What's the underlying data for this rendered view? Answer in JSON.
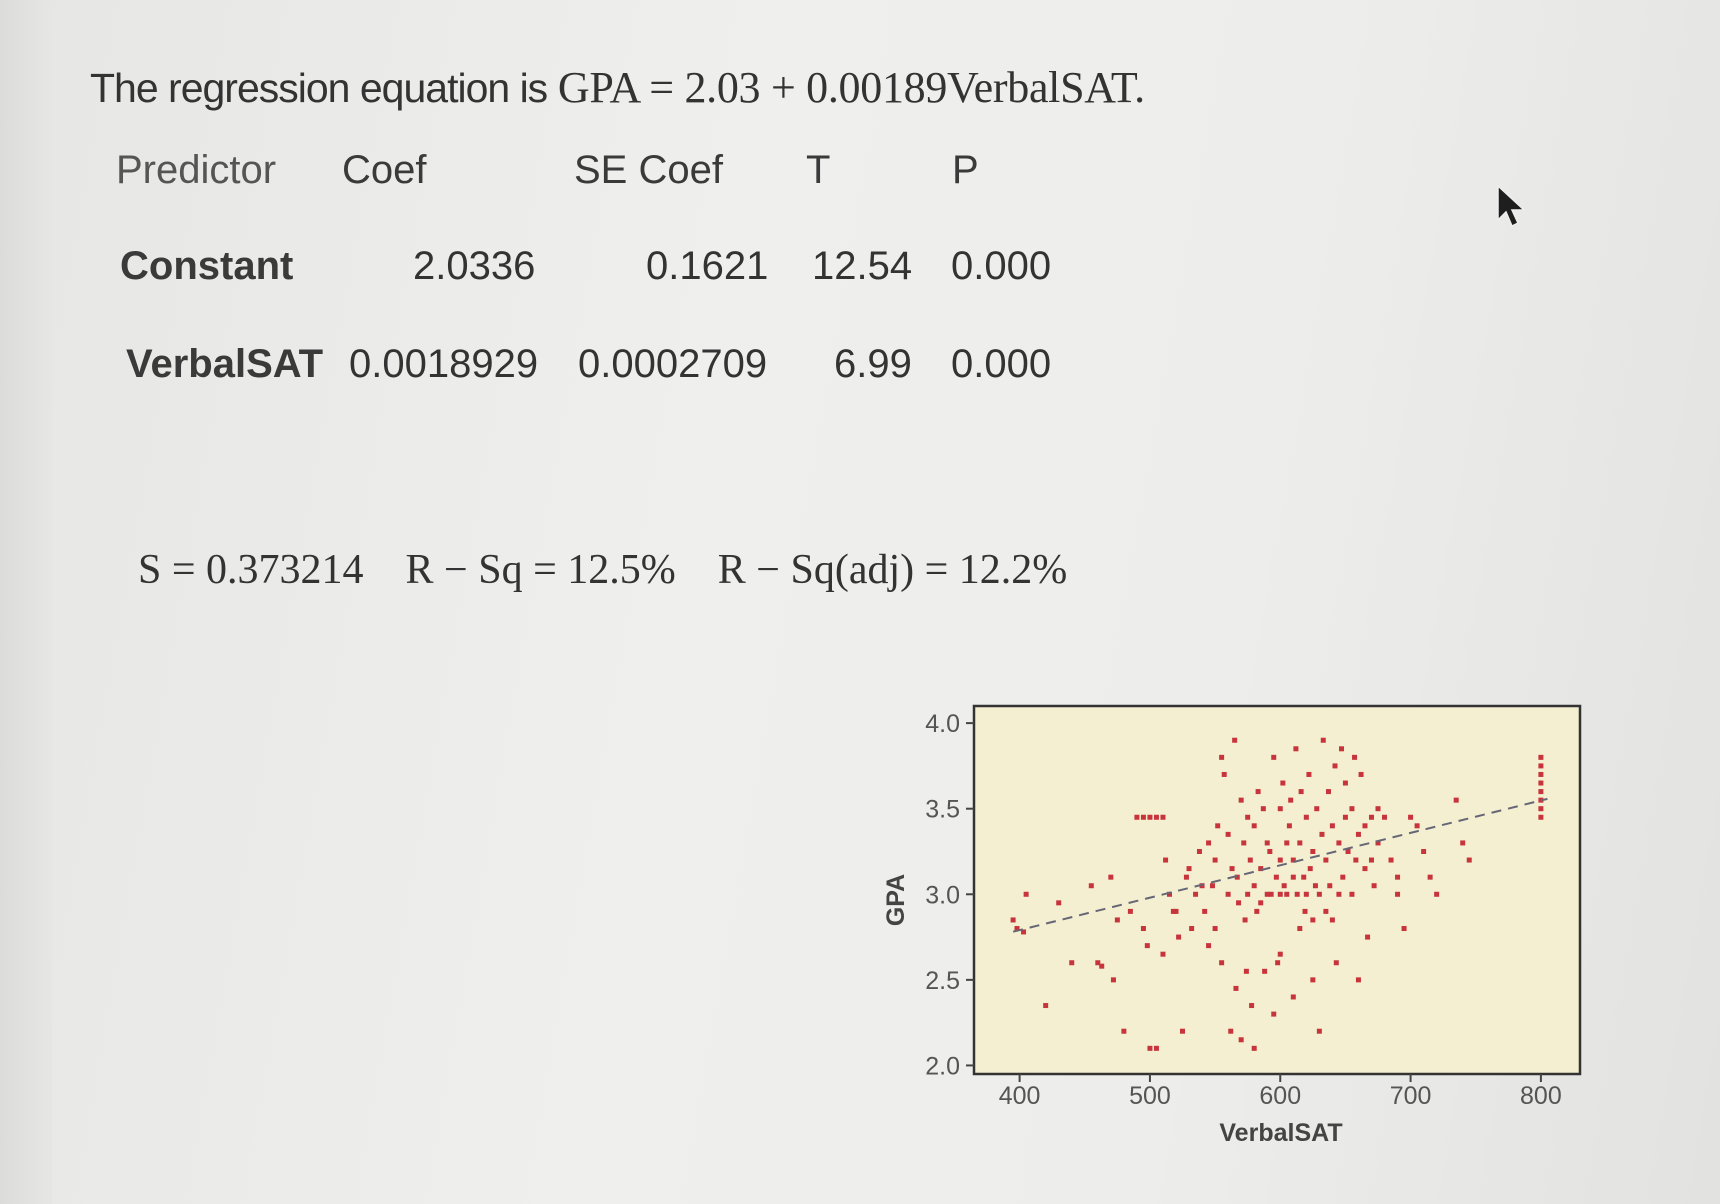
{
  "equation": {
    "lead": "The regression equation is",
    "formula": "GPA = 2.03 + 0.00189VerbalSAT."
  },
  "table": {
    "headers": [
      "Predictor",
      "Coef",
      "SE Coef",
      "T",
      "P"
    ],
    "rows": [
      {
        "predictor": "Constant",
        "coef": "2.0336",
        "se_coef": "0.1621",
        "t": "12.54",
        "p": "0.000"
      },
      {
        "predictor": "VerbalSAT",
        "coef": "0.0018929",
        "se_coef": "0.0002709",
        "t": "6.99",
        "p": "0.000"
      }
    ]
  },
  "stats": {
    "s": "S = 0.373214",
    "rsq": "R − Sq = 12.5%",
    "rsq_adj": "R − Sq(adj) = 12.2%"
  },
  "chart_data": {
    "type": "scatter",
    "xlabel": "VerbalSAT",
    "ylabel": "GPA",
    "xlim": [
      365,
      830
    ],
    "ylim": [
      1.95,
      4.1
    ],
    "x_ticks": [
      "400",
      "500",
      "600",
      "700",
      "800"
    ],
    "y_ticks": [
      "4.0",
      "3.5",
      "3.0",
      "2.5",
      "2.0"
    ],
    "regression_line": {
      "intercept": 2.0336,
      "slope": 0.0018929,
      "style": "dashed"
    },
    "background_color": "#f3efd0",
    "point_color": "#c8343c",
    "points": [
      [
        395,
        2.85
      ],
      [
        398,
        2.8
      ],
      [
        403,
        2.78
      ],
      [
        405,
        3.0
      ],
      [
        420,
        2.35
      ],
      [
        430,
        2.95
      ],
      [
        440,
        2.6
      ],
      [
        455,
        3.05
      ],
      [
        460,
        2.6
      ],
      [
        463,
        2.58
      ],
      [
        470,
        3.1
      ],
      [
        472,
        2.5
      ],
      [
        475,
        2.85
      ],
      [
        480,
        2.2
      ],
      [
        485,
        2.9
      ],
      [
        490,
        3.45
      ],
      [
        495,
        3.45
      ],
      [
        500,
        3.45
      ],
      [
        505,
        3.45
      ],
      [
        510,
        3.45
      ],
      [
        495,
        2.8
      ],
      [
        498,
        2.7
      ],
      [
        500,
        2.1
      ],
      [
        505,
        2.1
      ],
      [
        510,
        2.65
      ],
      [
        512,
        3.2
      ],
      [
        515,
        3.0
      ],
      [
        518,
        2.9
      ],
      [
        520,
        2.9
      ],
      [
        522,
        2.75
      ],
      [
        525,
        2.2
      ],
      [
        528,
        3.1
      ],
      [
        530,
        3.15
      ],
      [
        532,
        2.8
      ],
      [
        535,
        3.0
      ],
      [
        538,
        3.25
      ],
      [
        540,
        3.05
      ],
      [
        542,
        2.9
      ],
      [
        545,
        2.7
      ],
      [
        545,
        3.3
      ],
      [
        548,
        3.05
      ],
      [
        550,
        3.2
      ],
      [
        550,
        2.8
      ],
      [
        552,
        3.4
      ],
      [
        555,
        2.6
      ],
      [
        555,
        3.8
      ],
      [
        557,
        3.7
      ],
      [
        560,
        3.0
      ],
      [
        560,
        3.35
      ],
      [
        562,
        2.2
      ],
      [
        563,
        3.15
      ],
      [
        565,
        3.9
      ],
      [
        566,
        2.45
      ],
      [
        567,
        3.1
      ],
      [
        568,
        2.95
      ],
      [
        570,
        2.15
      ],
      [
        570,
        3.55
      ],
      [
        572,
        3.3
      ],
      [
        573,
        2.85
      ],
      [
        574,
        2.55
      ],
      [
        575,
        3.0
      ],
      [
        575,
        3.45
      ],
      [
        577,
        3.2
      ],
      [
        578,
        2.35
      ],
      [
        580,
        2.1
      ],
      [
        580,
        3.05
      ],
      [
        580,
        3.4
      ],
      [
        582,
        2.9
      ],
      [
        583,
        3.6
      ],
      [
        585,
        3.15
      ],
      [
        585,
        2.95
      ],
      [
        587,
        3.5
      ],
      [
        588,
        2.55
      ],
      [
        590,
        3.0
      ],
      [
        590,
        3.3
      ],
      [
        592,
        3.25
      ],
      [
        593,
        3.0
      ],
      [
        595,
        3.8
      ],
      [
        595,
        2.3
      ],
      [
        597,
        3.1
      ],
      [
        598,
        2.6
      ],
      [
        600,
        2.65
      ],
      [
        600,
        3.0
      ],
      [
        600,
        3.2
      ],
      [
        600,
        3.5
      ],
      [
        602,
        3.65
      ],
      [
        603,
        3.05
      ],
      [
        605,
        3.3
      ],
      [
        605,
        3.0
      ],
      [
        607,
        3.4
      ],
      [
        608,
        3.55
      ],
      [
        610,
        2.4
      ],
      [
        610,
        3.2
      ],
      [
        610,
        3.1
      ],
      [
        612,
        3.85
      ],
      [
        613,
        3.0
      ],
      [
        615,
        2.8
      ],
      [
        615,
        3.3
      ],
      [
        616,
        3.6
      ],
      [
        618,
        3.1
      ],
      [
        619,
        2.9
      ],
      [
        620,
        3.0
      ],
      [
        620,
        3.45
      ],
      [
        622,
        3.7
      ],
      [
        623,
        3.15
      ],
      [
        625,
        2.5
      ],
      [
        625,
        3.25
      ],
      [
        625,
        2.85
      ],
      [
        627,
        3.05
      ],
      [
        628,
        3.5
      ],
      [
        630,
        3.0
      ],
      [
        630,
        2.2
      ],
      [
        632,
        3.35
      ],
      [
        633,
        3.9
      ],
      [
        635,
        2.9
      ],
      [
        635,
        3.2
      ],
      [
        637,
        3.6
      ],
      [
        638,
        3.05
      ],
      [
        640,
        3.4
      ],
      [
        640,
        2.85
      ],
      [
        642,
        3.75
      ],
      [
        643,
        2.6
      ],
      [
        645,
        3.0
      ],
      [
        645,
        3.3
      ],
      [
        647,
        3.85
      ],
      [
        648,
        3.1
      ],
      [
        650,
        3.65
      ],
      [
        650,
        3.45
      ],
      [
        652,
        3.25
      ],
      [
        655,
        3.0
      ],
      [
        655,
        3.5
      ],
      [
        657,
        3.8
      ],
      [
        658,
        3.2
      ],
      [
        660,
        2.5
      ],
      [
        660,
        3.35
      ],
      [
        662,
        3.7
      ],
      [
        665,
        3.15
      ],
      [
        665,
        3.4
      ],
      [
        667,
        2.75
      ],
      [
        670,
        3.45
      ],
      [
        670,
        3.2
      ],
      [
        672,
        3.05
      ],
      [
        675,
        3.5
      ],
      [
        675,
        3.3
      ],
      [
        680,
        3.45
      ],
      [
        685,
        3.2
      ],
      [
        690,
        3.0
      ],
      [
        690,
        3.1
      ],
      [
        695,
        2.8
      ],
      [
        700,
        3.45
      ],
      [
        705,
        3.4
      ],
      [
        710,
        3.25
      ],
      [
        715,
        3.1
      ],
      [
        720,
        3.0
      ],
      [
        735,
        3.55
      ],
      [
        740,
        3.3
      ],
      [
        745,
        3.2
      ],
      [
        800,
        3.8
      ],
      [
        800,
        3.75
      ],
      [
        800,
        3.7
      ],
      [
        800,
        3.65
      ],
      [
        800,
        3.6
      ],
      [
        800,
        3.55
      ],
      [
        800,
        3.5
      ],
      [
        800,
        3.45
      ]
    ]
  }
}
